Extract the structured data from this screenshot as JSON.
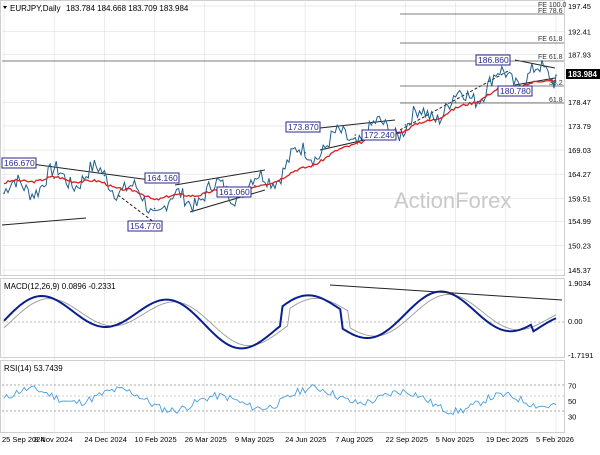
{
  "header": {
    "symbol": "EURJPY,Daily",
    "ohlc": "183.784 184.668 183.709 183.984"
  },
  "watermark": "ActionForex",
  "colors": {
    "price": "#1f5f8b",
    "ma": "#d62020",
    "macd": "#0a1f8f",
    "signal": "#999999",
    "rsi": "#4a9fe0",
    "grid": "#d8d8d8",
    "level_box": "#2a2a8a",
    "price_tag_bg": "#000000"
  },
  "price_panel": {
    "y_ticks": [
      "197.45",
      "192.41",
      "187.93",
      "183.984",
      "178.47",
      "173.79",
      "169.03",
      "164.27",
      "159.51",
      "154.99",
      "150.23",
      "145.37"
    ],
    "current_price": "183.984",
    "fib_labels": [
      "FE 100.0",
      "FE 78.6",
      "FE 61.8",
      "FE 61.8",
      "38.2",
      "61.8"
    ],
    "annotations": [
      "166.670",
      "164.160",
      "161.060",
      "154.770",
      "173.870",
      "172.240",
      "186.860",
      "180.780"
    ]
  },
  "macd_panel": {
    "title": "MACD(12,26,9) 0.0896 -0.2331",
    "y_ticks": [
      "1.9034",
      "0.00",
      "-1.7191"
    ]
  },
  "rsi_panel": {
    "title": "RSI(14) 53.7439",
    "y_ticks": [
      "70",
      "50",
      "30"
    ]
  },
  "x_axis": {
    "labels": [
      "25 Sep 2024",
      "8 Nov 2024",
      "24 Dec 2024",
      "10 Feb 2025",
      "26 Mar 2025",
      "9 May 2025",
      "24 Jun 2025",
      "7 Aug 2025",
      "22 Sep 2025",
      "5 Nov 2025",
      "19 Dec 2025",
      "5 Feb 2026"
    ]
  },
  "chart_data": {
    "type": "line",
    "title": "EURJPY,Daily",
    "xlabel": "",
    "ylabel": "",
    "ylim": [
      145.37,
      197.45
    ],
    "x": [
      "25 Sep 2024",
      "8 Nov 2024",
      "24 Dec 2024",
      "10 Feb 2025",
      "26 Mar 2025",
      "9 May 2025",
      "24 Jun 2025",
      "7 Aug 2025",
      "22 Sep 2025",
      "5 Nov 2025",
      "19 Dec 2025",
      "5 Feb 2026"
    ],
    "series": [
      {
        "values": [
          160.5,
          163.5,
          164.0,
          157.5,
          160.5,
          162.0,
          168.5,
          172.0,
          174.0,
          178.5,
          183.5,
          183.8
        ]
      },
      {
        "values": [
          162.5,
          163.5,
          162.5,
          159.5,
          160.5,
          161.5,
          165.5,
          170.5,
          173.0,
          177.0,
          181.5,
          182.8
        ]
      }
    ]
  }
}
